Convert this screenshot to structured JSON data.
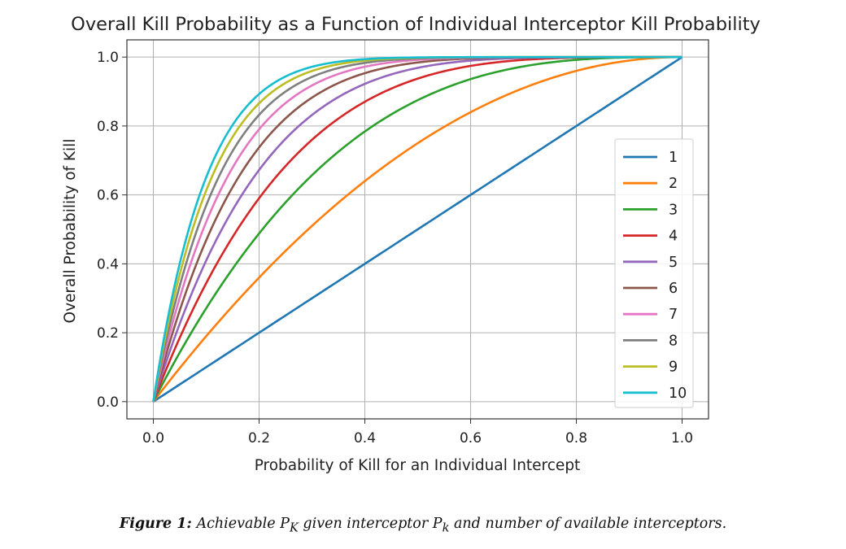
{
  "chart_data": {
    "type": "line",
    "title": "Overall Kill Probability as a Function of Individual Interceptor Kill Probability",
    "xlabel": "Probability of Kill for an Individual Intercept",
    "ylabel": "Overall Probability of Kill",
    "xlim": [
      -0.05,
      1.05
    ],
    "ylim": [
      -0.05,
      1.05
    ],
    "xticks": [
      "0.0",
      "0.2",
      "0.4",
      "0.6",
      "0.8",
      "1.0"
    ],
    "yticks": [
      "0.0",
      "0.2",
      "0.4",
      "0.6",
      "0.8",
      "1.0"
    ],
    "grid": true,
    "legend_position": "center-right",
    "formula": "1 - (1 - x)^n",
    "x": [
      0.0,
      0.05,
      0.1,
      0.15,
      0.2,
      0.3,
      0.4,
      0.5,
      0.6,
      0.7,
      0.8,
      0.9,
      1.0
    ],
    "series": [
      {
        "name": "1",
        "n": 1,
        "color": "#1f77b4",
        "values": [
          0.0,
          0.05,
          0.1,
          0.15,
          0.2,
          0.3,
          0.4,
          0.5,
          0.6,
          0.7,
          0.8,
          0.9,
          1.0
        ]
      },
      {
        "name": "2",
        "n": 2,
        "color": "#ff7f0e",
        "values": [
          0.0,
          0.098,
          0.19,
          0.278,
          0.36,
          0.51,
          0.64,
          0.75,
          0.84,
          0.91,
          0.96,
          0.99,
          1.0
        ]
      },
      {
        "name": "3",
        "n": 3,
        "color": "#2ca02c",
        "values": [
          0.0,
          0.143,
          0.271,
          0.386,
          0.488,
          0.657,
          0.784,
          0.875,
          0.936,
          0.973,
          0.992,
          0.999,
          1.0
        ]
      },
      {
        "name": "4",
        "n": 4,
        "color": "#d62728",
        "values": [
          0.0,
          0.185,
          0.344,
          0.478,
          0.59,
          0.76,
          0.87,
          0.938,
          0.974,
          0.992,
          0.998,
          1.0,
          1.0
        ]
      },
      {
        "name": "5",
        "n": 5,
        "color": "#9467bd",
        "values": [
          0.0,
          0.226,
          0.41,
          0.556,
          0.672,
          0.832,
          0.922,
          0.969,
          0.99,
          0.998,
          1.0,
          1.0,
          1.0
        ]
      },
      {
        "name": "6",
        "n": 6,
        "color": "#8c564b",
        "values": [
          0.0,
          0.265,
          0.469,
          0.623,
          0.738,
          0.882,
          0.953,
          0.984,
          0.996,
          0.999,
          1.0,
          1.0,
          1.0
        ]
      },
      {
        "name": "7",
        "n": 7,
        "color": "#e377c2",
        "values": [
          0.0,
          0.302,
          0.522,
          0.679,
          0.79,
          0.918,
          0.972,
          0.992,
          0.998,
          1.0,
          1.0,
          1.0,
          1.0
        ]
      },
      {
        "name": "8",
        "n": 8,
        "color": "#7f7f7f",
        "values": [
          0.0,
          0.337,
          0.57,
          0.728,
          0.832,
          0.942,
          0.983,
          0.996,
          0.999,
          1.0,
          1.0,
          1.0,
          1.0
        ]
      },
      {
        "name": "9",
        "n": 9,
        "color": "#bcbd22",
        "values": [
          0.0,
          0.37,
          0.613,
          0.768,
          0.866,
          0.96,
          0.99,
          0.998,
          1.0,
          1.0,
          1.0,
          1.0,
          1.0
        ]
      },
      {
        "name": "10",
        "n": 10,
        "color": "#17becf",
        "values": [
          0.0,
          0.401,
          0.651,
          0.803,
          0.893,
          0.972,
          0.994,
          0.999,
          1.0,
          1.0,
          1.0,
          1.0,
          1.0
        ]
      }
    ]
  },
  "caption": {
    "label": "Figure 1:",
    "text_1": " Achievable ",
    "pk_big": "P",
    "pk_big_sub": "K",
    "text_2": " given interceptor ",
    "pk_small": "P",
    "pk_small_sub": "k",
    "text_3": " and number of available interceptors."
  }
}
